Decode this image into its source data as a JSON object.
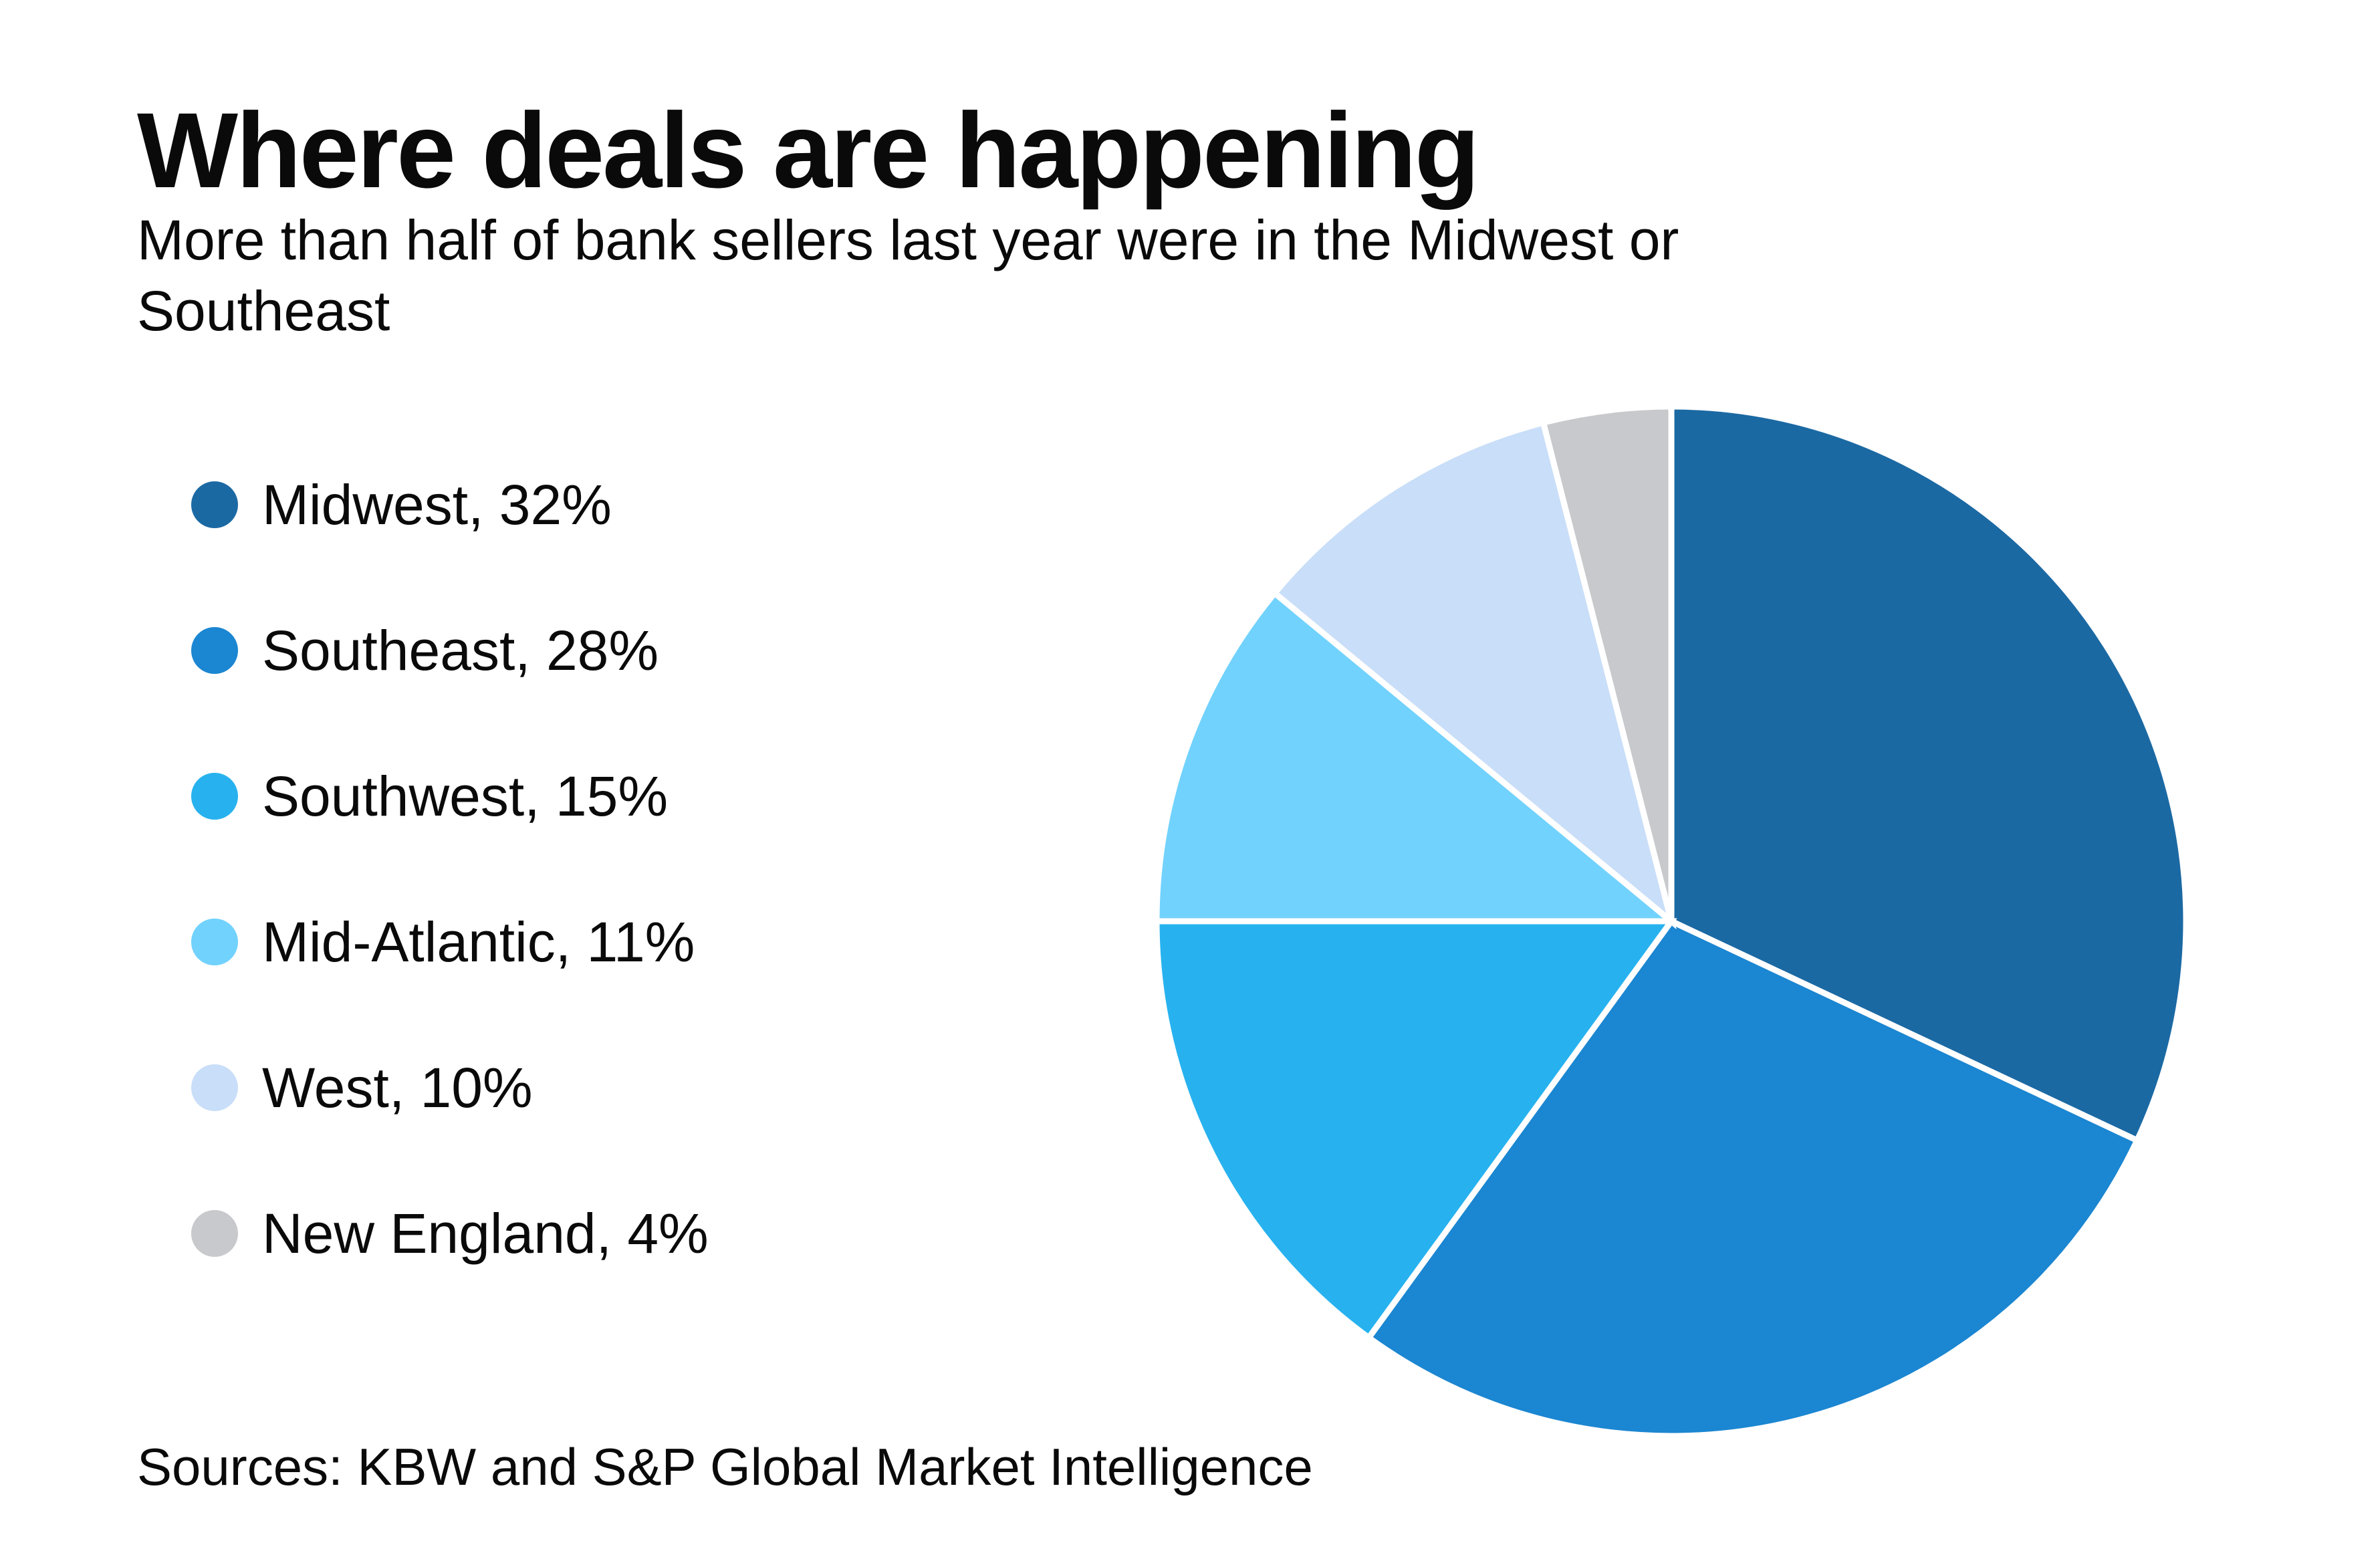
{
  "header": {
    "title": "Where deals are happening",
    "subtitle": "More than half of bank sellers last year were in the Midwest or\nSoutheast"
  },
  "legend": {
    "items": [
      {
        "label": "Midwest, 32%",
        "color": "#1B69A3"
      },
      {
        "label": "Southeast, 28%",
        "color": "#1B86D1"
      },
      {
        "label": "Southwest, 15%",
        "color": "#27B2EF"
      },
      {
        "label": "Mid-Atlantic, 11%",
        "color": "#71D2FD"
      },
      {
        "label": "West, 10%",
        "color": "#C9DEF8"
      },
      {
        "label": "New England, 4%",
        "color": "#C8C9CC"
      }
    ]
  },
  "source": {
    "text": "Sources: KBW and S&P Global Market Intelligence"
  },
  "chart_data": {
    "type": "pie",
    "title": "Where deals are happening",
    "subtitle": "More than half of bank sellers last year were in the Midwest or Southeast",
    "categories": [
      "Midwest",
      "Southeast",
      "Southwest",
      "Mid-Atlantic",
      "West",
      "New England"
    ],
    "values": [
      32,
      28,
      15,
      11,
      10,
      4
    ],
    "unit": "%",
    "colors": [
      "#1B69A3",
      "#1B86D1",
      "#27B2EF",
      "#71D2FD",
      "#C9DEF8",
      "#C8C9CC"
    ],
    "slice_stroke_color": "#FFFFFF",
    "start_angle_deg": -90,
    "direction": "clockwise",
    "legend_position": "left",
    "source": "Sources: KBW and S&P Global Market Intelligence"
  }
}
